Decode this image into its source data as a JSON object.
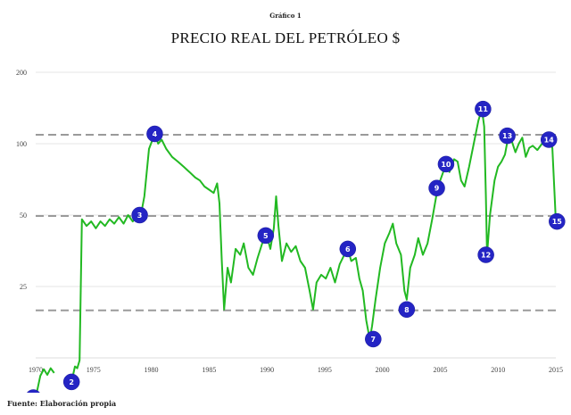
{
  "header": {
    "caption": "Gráfico 1",
    "title": "PRECIO REAL DEL PETRÓLEO  $"
  },
  "footer": {
    "source": "Fuente: Elaboración propia"
  },
  "colors": {
    "line": "#22b922",
    "marker_fill": "#2424c4",
    "marker_text": "#ffffff",
    "grid": "#e6e6e6",
    "dashed": "#9a9a9a",
    "axis": "#dddddd"
  },
  "chart_data": {
    "type": "line",
    "title": "PRECIO REAL DEL PETRÓLEO  $",
    "subtitle": "Gráfico 1",
    "xlabel": "",
    "ylabel": "",
    "yscale": "log2",
    "ylim": [
      12.5,
      200
    ],
    "xlim": [
      1970,
      2015
    ],
    "grid": true,
    "legend": "none",
    "x_ticks": [
      "1970",
      "1975",
      "1980",
      "1985",
      "1990",
      "1995",
      "2000",
      "2005",
      "2010",
      "2015"
    ],
    "y_ticks": [
      25,
      50,
      100,
      200
    ],
    "reference_lines": [
      {
        "value": 110,
        "style": "dashed"
      },
      {
        "value": 50,
        "style": "dashed"
      },
      {
        "value": 20,
        "style": "dashed"
      }
    ],
    "series": [
      {
        "name": "Precio real del petróleo",
        "points": [
          [
            1970.0,
            8.5
          ],
          [
            1970.4,
            10.5
          ],
          [
            1970.7,
            11.2
          ],
          [
            1971.0,
            10.6
          ],
          [
            1971.3,
            11.3
          ],
          [
            1971.6,
            10.8
          ],
          [
            1973.1,
            9.9
          ],
          [
            1973.4,
            11.5
          ],
          [
            1973.6,
            11.3
          ],
          [
            1973.8,
            12.2
          ],
          [
            1974.0,
            48
          ],
          [
            1974.4,
            45
          ],
          [
            1974.8,
            47
          ],
          [
            1975.2,
            44
          ],
          [
            1975.6,
            47
          ],
          [
            1976.0,
            45
          ],
          [
            1976.4,
            48
          ],
          [
            1976.8,
            46
          ],
          [
            1977.2,
            49
          ],
          [
            1977.6,
            46
          ],
          [
            1978.0,
            50
          ],
          [
            1978.4,
            47
          ],
          [
            1978.8,
            50
          ],
          [
            1979.1,
            50
          ],
          [
            1979.4,
            60
          ],
          [
            1979.8,
            95
          ],
          [
            1980.3,
            110
          ],
          [
            1980.6,
            100
          ],
          [
            1980.9,
            104
          ],
          [
            1981.3,
            95
          ],
          [
            1981.8,
            88
          ],
          [
            1982.3,
            84
          ],
          [
            1982.8,
            80
          ],
          [
            1983.3,
            76
          ],
          [
            1983.8,
            72
          ],
          [
            1984.2,
            70
          ],
          [
            1984.6,
            66
          ],
          [
            1985.0,
            64
          ],
          [
            1985.4,
            62
          ],
          [
            1985.7,
            68
          ],
          [
            1985.9,
            56
          ],
          [
            1986.1,
            32
          ],
          [
            1986.3,
            20
          ],
          [
            1986.6,
            30
          ],
          [
            1986.9,
            26
          ],
          [
            1987.3,
            36
          ],
          [
            1987.7,
            34
          ],
          [
            1988.0,
            38
          ],
          [
            1988.4,
            30
          ],
          [
            1988.8,
            28
          ],
          [
            1989.2,
            33
          ],
          [
            1989.6,
            38
          ],
          [
            1990.0,
            41
          ],
          [
            1990.3,
            36
          ],
          [
            1990.6,
            44
          ],
          [
            1990.8,
            60
          ],
          [
            1991.0,
            45
          ],
          [
            1991.3,
            32
          ],
          [
            1991.7,
            38
          ],
          [
            1992.1,
            35
          ],
          [
            1992.5,
            37
          ],
          [
            1992.9,
            32
          ],
          [
            1993.3,
            30
          ],
          [
            1993.7,
            24
          ],
          [
            1994.0,
            20
          ],
          [
            1994.3,
            26
          ],
          [
            1994.7,
            28
          ],
          [
            1995.1,
            27
          ],
          [
            1995.5,
            30
          ],
          [
            1995.9,
            26
          ],
          [
            1996.3,
            31
          ],
          [
            1996.7,
            34
          ],
          [
            1997.0,
            36
          ],
          [
            1997.3,
            32
          ],
          [
            1997.7,
            33
          ],
          [
            1998.0,
            27
          ],
          [
            1998.3,
            24
          ],
          [
            1998.6,
            18
          ],
          [
            1998.9,
            15
          ],
          [
            1999.1,
            17
          ],
          [
            1999.4,
            22
          ],
          [
            1999.8,
            30
          ],
          [
            2000.2,
            38
          ],
          [
            2000.6,
            42
          ],
          [
            2000.9,
            46
          ],
          [
            2001.2,
            38
          ],
          [
            2001.6,
            34
          ],
          [
            2001.9,
            24
          ],
          [
            2002.1,
            22
          ],
          [
            2002.4,
            30
          ],
          [
            2002.8,
            34
          ],
          [
            2003.1,
            40
          ],
          [
            2003.5,
            34
          ],
          [
            2003.9,
            38
          ],
          [
            2004.3,
            48
          ],
          [
            2004.7,
            62
          ],
          [
            2005.0,
            70
          ],
          [
            2005.5,
            82
          ],
          [
            2005.8,
            76
          ],
          [
            2006.2,
            86
          ],
          [
            2006.5,
            84
          ],
          [
            2006.8,
            70
          ],
          [
            2007.1,
            66
          ],
          [
            2007.5,
            80
          ],
          [
            2007.9,
            100
          ],
          [
            2008.3,
            125
          ],
          [
            2008.6,
            140
          ],
          [
            2008.8,
            118
          ],
          [
            2008.95,
            60
          ],
          [
            2009.05,
            34
          ],
          [
            2009.3,
            50
          ],
          [
            2009.7,
            70
          ],
          [
            2010.0,
            80
          ],
          [
            2010.3,
            84
          ],
          [
            2010.6,
            90
          ],
          [
            2010.9,
            108
          ],
          [
            2011.2,
            102
          ],
          [
            2011.5,
            92
          ],
          [
            2011.8,
            100
          ],
          [
            2012.1,
            106
          ],
          [
            2012.4,
            88
          ],
          [
            2012.7,
            96
          ],
          [
            2013.0,
            98
          ],
          [
            2013.4,
            94
          ],
          [
            2013.8,
            100
          ],
          [
            2014.1,
            104
          ],
          [
            2014.4,
            104
          ],
          [
            2014.7,
            96
          ],
          [
            2014.9,
            60
          ],
          [
            2015.0,
            47
          ]
        ]
      }
    ],
    "annotations": [
      {
        "label": "1",
        "x": 1969.8,
        "y": 8.5
      },
      {
        "label": "2",
        "x": 1973.1,
        "y": 9.9
      },
      {
        "label": "3",
        "x": 1979.0,
        "y": 50
      },
      {
        "label": "4",
        "x": 1980.3,
        "y": 110
      },
      {
        "label": "5",
        "x": 1989.9,
        "y": 41
      },
      {
        "label": "6",
        "x": 1997.0,
        "y": 36
      },
      {
        "label": "7",
        "x": 1999.2,
        "y": 15
      },
      {
        "label": "8",
        "x": 2002.1,
        "y": 20
      },
      {
        "label": "9",
        "x": 2004.7,
        "y": 65
      },
      {
        "label": "10",
        "x": 2005.5,
        "y": 82
      },
      {
        "label": "11",
        "x": 2008.7,
        "y": 140
      },
      {
        "label": "12",
        "x": 2008.95,
        "y": 34
      },
      {
        "label": "13",
        "x": 2010.8,
        "y": 108
      },
      {
        "label": "14",
        "x": 2014.4,
        "y": 104
      },
      {
        "label": "15",
        "x": 2015.1,
        "y": 47
      }
    ]
  }
}
